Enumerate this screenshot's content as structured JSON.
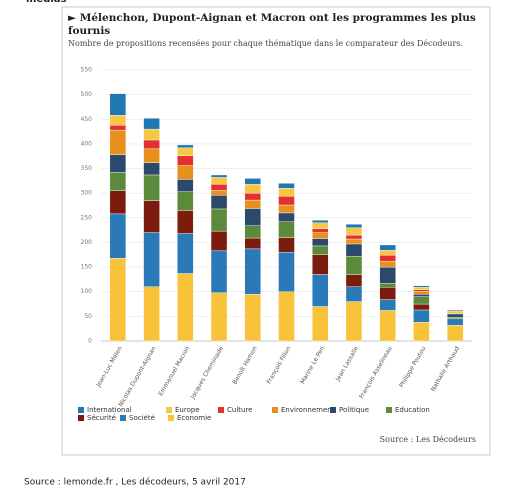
{
  "chart_data": {
    "type": "stacked_bar",
    "top_text": "medias",
    "title": "► Mélenchon, Dupont-Aignan et Macron ont les programmes les plus fournis",
    "subtitle": "Nombre de propositions recensées pour chaque thématique dans le comparateur des Décodeurs.",
    "categories": [
      "Jean-Luc Mélen",
      "Nicolas Dupont-Aignan",
      "Emmanuel Macron",
      "Jacques Cheminade",
      "Benoît Hamon",
      "François Fillon",
      "Marine Le Pen",
      "Jean Lassalle",
      "François Asselineau",
      "Philippe Poutou",
      "Nathalie Arthaud"
    ],
    "series": [
      {
        "name": "International",
        "color": "#1f78b4",
        "values": [
          44,
          22,
          6,
          5,
          12,
          10,
          5,
          7,
          11,
          3,
          2
        ]
      },
      {
        "name": "Europe",
        "color": "#f6c744",
        "values": [
          20,
          22,
          16,
          14,
          18,
          16,
          12,
          15,
          10,
          5,
          6
        ]
      },
      {
        "name": "Culture",
        "color": "#e5302f",
        "values": [
          10,
          18,
          20,
          12,
          14,
          18,
          8,
          8,
          12,
          3,
          0
        ]
      },
      {
        "name": "Environnement",
        "color": "#e8901c",
        "values": [
          50,
          28,
          28,
          10,
          17,
          16,
          12,
          10,
          12,
          6,
          0
        ]
      },
      {
        "name": "Politique",
        "color": "#2b4a6b",
        "values": [
          36,
          25,
          25,
          28,
          35,
          18,
          15,
          25,
          33,
          5,
          7
        ]
      },
      {
        "name": "Education",
        "color": "#5b8a3a",
        "values": [
          37,
          52,
          38,
          45,
          25,
          32,
          18,
          37,
          8,
          15,
          3
        ]
      },
      {
        "name": "Sécurité",
        "color": "#7b1c0e",
        "values": [
          47,
          65,
          47,
          40,
          22,
          30,
          40,
          25,
          25,
          12,
          0
        ]
      },
      {
        "name": "Société",
        "color": "#2a7ab9",
        "values": [
          90,
          110,
          81,
          85,
          92,
          80,
          65,
          30,
          22,
          25,
          13
        ]
      },
      {
        "name": "Economie",
        "color": "#f8c33a",
        "values": [
          168,
          110,
          137,
          98,
          95,
          100,
          70,
          80,
          62,
          38,
          32
        ]
      }
    ],
    "ylim": [
      0,
      550
    ],
    "yticks": [
      0,
      50,
      100,
      150,
      200,
      250,
      300,
      350,
      400,
      450,
      500,
      550
    ],
    "grid": true,
    "chart_source": "Source : Les Décodeurs",
    "page_source": "Source : lemonde.fr , Les décodeurs, 5 avril 2017"
  }
}
